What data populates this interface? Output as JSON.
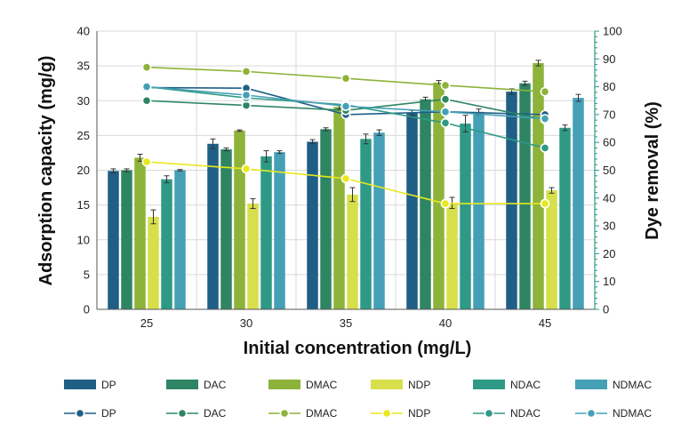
{
  "chart_data": {
    "type": "bar",
    "categories": [
      "25",
      "30",
      "35",
      "40",
      "45"
    ],
    "xlabel": "Initial concentration (mg/L)",
    "ylabel": "Adsorption capacity (mg/g)",
    "y2label": "Dye removal (%)",
    "ylim": [
      0,
      40
    ],
    "y2lim": [
      0,
      100
    ],
    "yticks": [
      "0",
      "5",
      "10",
      "15",
      "20",
      "25",
      "30",
      "35",
      "40"
    ],
    "y2ticks": [
      "0",
      "10",
      "20",
      "30",
      "40",
      "50",
      "60",
      "70",
      "80",
      "90",
      "100"
    ],
    "grid": true,
    "legend_position": "bottom",
    "bar_series": [
      {
        "name": "DP",
        "color": "#1f5f86",
        "values": [
          19.9,
          23.8,
          24.1,
          28.2,
          31.3
        ],
        "errors": [
          0.3,
          0.7,
          0.3,
          0.4,
          0.4
        ]
      },
      {
        "name": "DAC",
        "color": "#2e8563",
        "values": [
          20.0,
          23.0,
          25.9,
          30.2,
          32.5
        ],
        "errors": [
          0.2,
          0.2,
          0.2,
          0.3,
          0.3
        ]
      },
      {
        "name": "DMAC",
        "color": "#8db33a",
        "values": [
          21.8,
          25.7,
          29.1,
          32.6,
          35.4
        ],
        "errors": [
          0.5,
          0.1,
          0.3,
          0.3,
          0.4
        ]
      },
      {
        "name": "NDP",
        "color": "#d7df4b",
        "values": [
          13.3,
          15.2,
          16.5,
          15.3,
          17.1
        ],
        "errors": [
          1.0,
          0.7,
          1.0,
          0.8,
          0.4
        ]
      },
      {
        "name": "NDAC",
        "color": "#2e9a85",
        "values": [
          18.7,
          22.0,
          24.5,
          26.7,
          26.1
        ],
        "errors": [
          0.5,
          0.8,
          0.7,
          1.2,
          0.4
        ]
      },
      {
        "name": "NDMAC",
        "color": "#45a0b6",
        "values": [
          20.0,
          22.6,
          25.4,
          28.4,
          30.4
        ],
        "errors": [
          0.1,
          0.2,
          0.4,
          0.4,
          0.5
        ]
      }
    ],
    "line_series": [
      {
        "name": "DP",
        "color": "#1f5f86",
        "values": [
          79.7,
          79.5,
          70.0,
          71.0,
          70.0
        ]
      },
      {
        "name": "DAC",
        "color": "#2e8563",
        "values": [
          75.0,
          73.3,
          71.5,
          75.5,
          68.2
        ]
      },
      {
        "name": "DMAC",
        "color": "#8db33a",
        "values": [
          87.0,
          85.5,
          83.0,
          80.5,
          78.2
        ]
      },
      {
        "name": "NDP",
        "color": "#e8e81f",
        "values": [
          53.0,
          50.5,
          47.0,
          38.0,
          38.0
        ]
      },
      {
        "name": "NDAC",
        "color": "#2e9a85",
        "values": [
          80.0,
          76.0,
          73.5,
          67.0,
          58.0
        ]
      },
      {
        "name": "NDMAC",
        "color": "#45a0b6",
        "values": [
          80.0,
          77.0,
          73.0,
          71.0,
          68.5
        ]
      }
    ]
  }
}
